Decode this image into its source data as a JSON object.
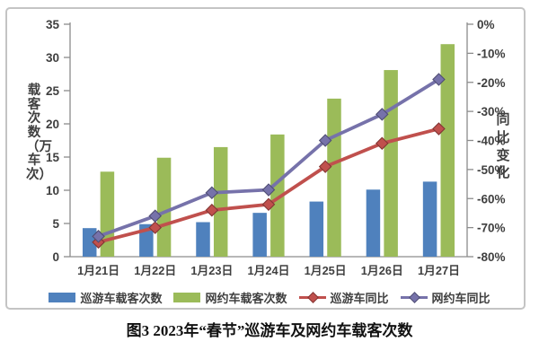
{
  "caption": "图3 2023年“春节”巡游车及网约车载客次数",
  "chart_data": {
    "type": "bar",
    "subtype": "combo-bar-line-dual-axis",
    "title": "图3 2023年“春节”巡游车及网约车载客次数",
    "categories": [
      "1月21日",
      "1月22日",
      "1月23日",
      "1月24日",
      "1月25日",
      "1月26日",
      "1月27日"
    ],
    "series": [
      {
        "name": "巡游车载客次数",
        "type": "bar",
        "axis": "left",
        "color": "#4f81bd",
        "values": [
          4.3,
          4.9,
          5.2,
          6.6,
          8.3,
          10.1,
          11.3
        ]
      },
      {
        "name": "网约车载客次数",
        "type": "bar",
        "axis": "left",
        "color": "#9bbb59",
        "values": [
          12.8,
          14.9,
          16.5,
          18.4,
          23.8,
          28.1,
          32.0
        ]
      },
      {
        "name": "巡游车同比",
        "type": "line",
        "axis": "right",
        "color": "#c0504d",
        "values": [
          -75,
          -70,
          -64,
          -62,
          -49,
          -41,
          -36
        ]
      },
      {
        "name": "网约车同比",
        "type": "line",
        "axis": "right",
        "color": "#7672aa",
        "values": [
          -73,
          -66,
          -58,
          -57,
          -40,
          -31,
          -19
        ]
      }
    ],
    "left_axis": {
      "title": "载客次数（万车次）",
      "min": 0,
      "max": 35,
      "step": 5,
      "ticks": [
        0,
        5,
        10,
        15,
        20,
        25,
        30,
        35
      ]
    },
    "right_axis": {
      "title": "同比变化",
      "min": -80,
      "max": 0,
      "step": -10,
      "tick_labels": [
        "0%",
        "-10%",
        "-20%",
        "-30%",
        "-40%",
        "-50%",
        "-60%",
        "-70%",
        "-80%"
      ]
    },
    "xlabel": "",
    "grid": false,
    "legend_position": "bottom",
    "axis_text_color": "#3f3f3f",
    "axis_line_color": "#8c8c8c"
  }
}
